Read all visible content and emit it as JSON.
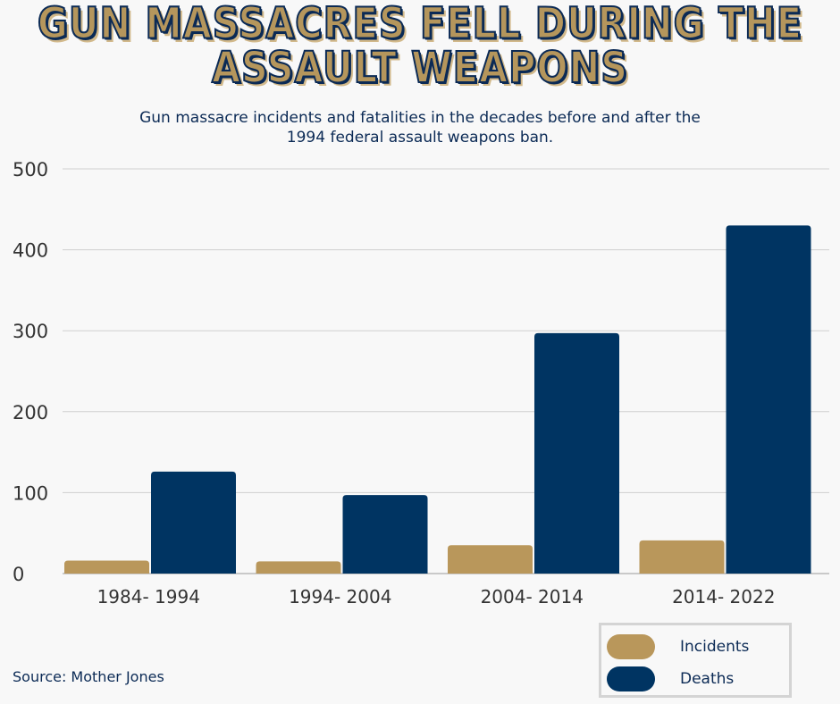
{
  "title": "GUN MASSACRES FELL DURING THE ASSAULT WEAPONS",
  "subtitle": "Gun massacre incidents and fatalities in the decades before and after the 1994 federal assault weapons ban.",
  "source": "Source: Mother Jones",
  "colors": {
    "incidents": "#b9975b",
    "deaths": "#003462",
    "grid": "#cfcfcf",
    "text": "#0b2a55"
  },
  "chart_data": {
    "type": "bar",
    "title": "GUN MASSACRES FELL DURING THE ASSAULT WEAPONS",
    "subtitle": "Gun massacre incidents and fatalities in the decades before and after the 1994 federal assault weapons ban.",
    "categories": [
      "1984- 1994",
      "1994- 2004",
      "2004- 2014",
      "2014- 2022"
    ],
    "series": [
      {
        "name": "Incidents",
        "values": [
          16,
          15,
          35,
          41
        ]
      },
      {
        "name": "Deaths",
        "values": [
          126,
          97,
          297,
          430
        ]
      }
    ],
    "yticks": [
      "0",
      "100",
      "200",
      "300",
      "400",
      "500"
    ],
    "ylim": [
      0,
      500
    ],
    "xlabel": "",
    "ylabel": "",
    "grid": true,
    "legend": "bottom-right"
  }
}
